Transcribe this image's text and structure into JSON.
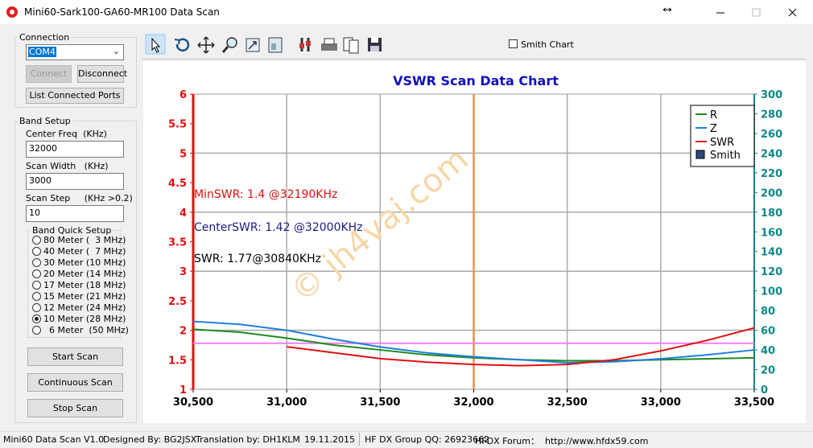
{
  "window": {
    "title": "Mini60-Sark100-GA60-MR100 Data Scan"
  },
  "connection": {
    "title": "Connection",
    "port": "COM4",
    "connect": "Connect",
    "disconnect": "Disconnect",
    "list_ports": "List Connected Ports"
  },
  "band_setup": {
    "title": "Band Setup",
    "center_label": "Center Freq  (KHz)",
    "center_value": "32000",
    "width_label": "Scan Width   (KHz)",
    "width_value": "3000",
    "step_label": "Scan Step     (KHz >0.2)",
    "step_value": "10",
    "quick_title": "Band Quick Setup",
    "bands": [
      "80 Meter (  3 MHz)",
      "40 Meter (  7 MHz)",
      "30 Meter (10 MHz)",
      "20 Meter (14 MHz)",
      "17 Meter (18 MHz)",
      "15 Meter (21 MHz)",
      "12 Meter (24 MHz)",
      "10 Meter (28 MHz)",
      "  6 Meter  (50 MHz)"
    ],
    "selected_index": 7
  },
  "buttons": {
    "start": "Start Scan",
    "continuous": "Continuous Scan",
    "stop": "Stop Scan"
  },
  "toolbar": {
    "smith_checkbox": "Smith Chart"
  },
  "chart_data": {
    "type": "line",
    "title": "VSWR Scan Data Chart",
    "x": [
      30500,
      30750,
      31000,
      31250,
      31500,
      31750,
      32000,
      32250,
      32500,
      32750,
      33000,
      33250,
      33500
    ],
    "series": [
      {
        "name": "R",
        "color": "#1e8a1e",
        "axis": "y2",
        "values": [
          61,
          58,
          52,
          45,
          40,
          35,
          32,
          30,
          29,
          29,
          30,
          31,
          32
        ]
      },
      {
        "name": "Z",
        "color": "#1f7fe0",
        "axis": "y2",
        "values": [
          69,
          66,
          60,
          51,
          43,
          37,
          33,
          30,
          27,
          28,
          31,
          35,
          40
        ]
      },
      {
        "name": "SWR",
        "color": "#e01010",
        "values": [
          null,
          null,
          1.72,
          1.62,
          1.52,
          1.46,
          1.42,
          1.4,
          1.42,
          1.5,
          1.65,
          1.83,
          2.04
        ]
      }
    ],
    "smith_legend": "Smith",
    "hline": {
      "value": 1.78,
      "color": "#f080f0"
    },
    "vline": {
      "value": 32000,
      "color": "#e8905a"
    },
    "xlim": [
      30500,
      33500
    ],
    "xticks": [
      {
        "value": 30500,
        "label": "30,500"
      },
      {
        "value": 31000,
        "label": "31,000"
      },
      {
        "value": 31500,
        "label": "31,500"
      },
      {
        "value": 32000,
        "label": "32,000"
      },
      {
        "value": 32500,
        "label": "32,500"
      },
      {
        "value": 33000,
        "label": "33,000"
      },
      {
        "value": 33500,
        "label": "33,500"
      }
    ],
    "ylim": [
      1,
      6
    ],
    "yticks": [
      1,
      1.5,
      2,
      2.5,
      3,
      3.5,
      4,
      4.5,
      5,
      5.5,
      6
    ],
    "y2lim": [
      0,
      300
    ],
    "y2ticks": [
      0,
      20,
      40,
      60,
      80,
      100,
      120,
      140,
      160,
      180,
      200,
      220,
      240,
      260,
      280,
      300
    ],
    "grid": true,
    "annotations": [
      {
        "text": "MinSWR: 1.4 @32190KHz",
        "color": "#e01010"
      },
      {
        "text": "CenterSWR: 1.42 @32000KHz",
        "color": "#1a1a80"
      },
      {
        "text": "SWR: 1.77@30840KHz",
        "color": "#000000"
      }
    ],
    "watermark": "© jh4vaj.com"
  },
  "status": [
    "Mini60 Data Scan V1.0",
    "Designed By: BG2JSX",
    "Translation by: DH1KLM",
    "19.11.2015",
    "HF DX Group QQ: 26923662",
    "HFDX Forum：  http://www.hfdx59.com"
  ]
}
